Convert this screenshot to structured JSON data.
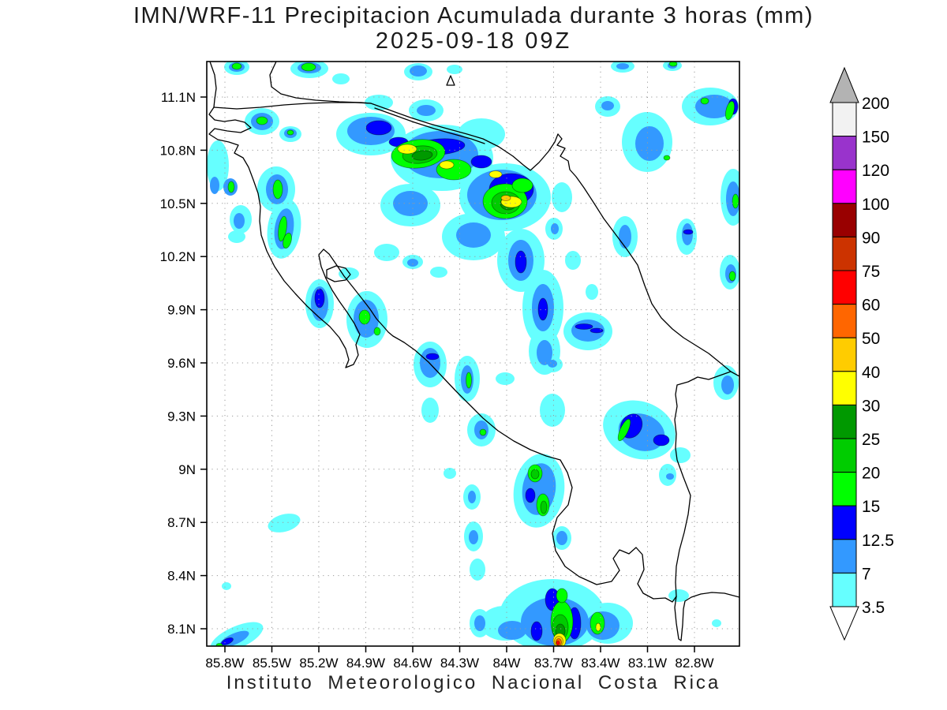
{
  "title": {
    "line1": "IMN/WRF-11 Precipitacion Acumulada durante 3 horas (mm)",
    "line2": "2025-09-18 09Z"
  },
  "footer": {
    "text": "Instituto Meteorologico Nacional Costa Rica"
  },
  "axes": {
    "x_ticks": [
      "85.8W",
      "85.5W",
      "85.2W",
      "84.9W",
      "84.6W",
      "84.3W",
      "84W",
      "83.7W",
      "83.4W",
      "83.1W",
      "82.8W"
    ],
    "y_ticks": [
      "11.1N",
      "10.8N",
      "10.5N",
      "10.2N",
      "9.9N",
      "9.6N",
      "9.3N",
      "9N",
      "8.7N",
      "8.4N",
      "8.1N"
    ]
  },
  "colorbar": {
    "units": "mm",
    "levels": [
      "200",
      "150",
      "120",
      "100",
      "90",
      "75",
      "60",
      "50",
      "40",
      "30",
      "25",
      "20",
      "15",
      "12.5",
      "7",
      "3.5"
    ],
    "colors": [
      "#f2f2f2",
      "#9933cc",
      "#ff00ff",
      "#990000",
      "#cc3300",
      "#ff0000",
      "#ff6600",
      "#ffcc00",
      "#ffff00",
      "#009900",
      "#00cc00",
      "#00ff00",
      "#0000ff",
      "#3399ff",
      "#66ffff"
    ],
    "above_color": "#b3b3b3",
    "below_color": "#ffffff"
  },
  "chart_data": {
    "type": "heatmap",
    "subtype": "filled-contour precipitation map",
    "title": "IMN/WRF-11 Precipitacion Acumulada durante 3 horas (mm)",
    "valid_time": "2025-09-18 09Z",
    "region": "Costa Rica",
    "lon_range_deg": [
      -85.9,
      -82.5
    ],
    "lat_range_deg": [
      8.0,
      11.3
    ],
    "grid": "dotted graticule every 0.3 degrees",
    "legend_position": "right vertical colorbar",
    "levels_mm": [
      3.5,
      7,
      12.5,
      15,
      20,
      25,
      30,
      40,
      50,
      60,
      75,
      90,
      100,
      120,
      150,
      200
    ],
    "cells": [
      {
        "lon": -84.63,
        "lat": 10.8,
        "peak_mm": 40
      },
      {
        "lon": -84.38,
        "lat": 10.72,
        "peak_mm": 40
      },
      {
        "lon": -84.07,
        "lat": 10.66,
        "peak_mm": 40
      },
      {
        "lon": -83.97,
        "lat": 10.52,
        "peak_mm": 50
      },
      {
        "lon": -85.55,
        "lat": 10.96,
        "peak_mm": 20
      },
      {
        "lon": -85.45,
        "lat": 10.35,
        "peak_mm": 25
      },
      {
        "lon": -85.3,
        "lat": 10.95,
        "peak_mm": 20
      },
      {
        "lon": -82.55,
        "lat": 11.02,
        "peak_mm": 20
      },
      {
        "lon": -84.9,
        "lat": 10.06,
        "peak_mm": 20
      },
      {
        "lon": -84.25,
        "lat": 9.5,
        "peak_mm": 20
      },
      {
        "lon": -83.55,
        "lat": 9.35,
        "peak_mm": 20
      },
      {
        "lon": -83.77,
        "lat": 8.8,
        "peak_mm": 25
      },
      {
        "lon": -83.67,
        "lat": 8.03,
        "peak_mm": 75
      },
      {
        "lon": -83.42,
        "lat": 8.11,
        "peak_mm": 40
      },
      {
        "lon": -85.75,
        "lat": 8.05,
        "peak_mm": 15
      }
    ]
  }
}
